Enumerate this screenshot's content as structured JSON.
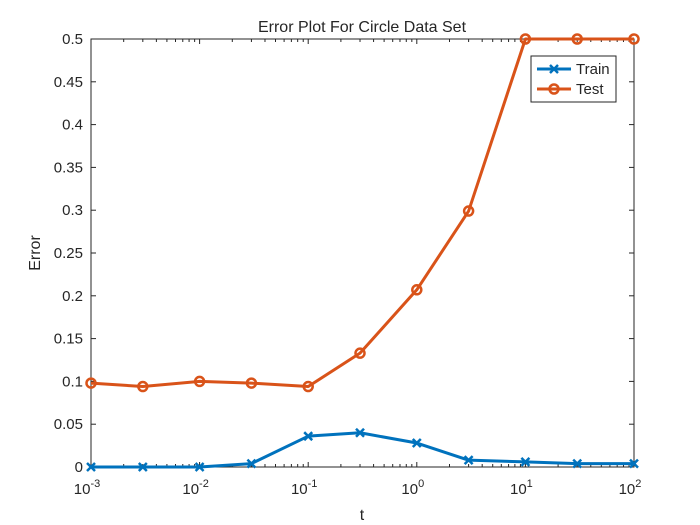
{
  "chart_data": {
    "type": "line",
    "title": "Error Plot For Circle Data Set",
    "xlabel": "t",
    "ylabel": "Error",
    "xscale": "log",
    "xlim": [
      0.001,
      100
    ],
    "ylim": [
      0,
      0.5
    ],
    "x_ticks": [
      {
        "value": 0.001,
        "base": "10",
        "exp": "-3"
      },
      {
        "value": 0.01,
        "base": "10",
        "exp": "-2"
      },
      {
        "value": 0.1,
        "base": "10",
        "exp": "-1"
      },
      {
        "value": 1,
        "base": "10",
        "exp": "0"
      },
      {
        "value": 10,
        "base": "10",
        "exp": "1"
      },
      {
        "value": 100,
        "base": "10",
        "exp": "2"
      }
    ],
    "y_ticks": [
      {
        "value": 0,
        "label": "0"
      },
      {
        "value": 0.05,
        "label": "0.05"
      },
      {
        "value": 0.1,
        "label": "0.1"
      },
      {
        "value": 0.15,
        "label": "0.15"
      },
      {
        "value": 0.2,
        "label": "0.2"
      },
      {
        "value": 0.25,
        "label": "0.25"
      },
      {
        "value": 0.3,
        "label": "0.3"
      },
      {
        "value": 0.35,
        "label": "0.35"
      },
      {
        "value": 0.4,
        "label": "0.4"
      },
      {
        "value": 0.45,
        "label": "0.45"
      },
      {
        "value": 0.5,
        "label": "0.5"
      }
    ],
    "x": [
      0.001,
      0.003,
      0.01,
      0.03,
      0.1,
      0.3,
      1,
      3,
      10,
      30,
      100
    ],
    "series": [
      {
        "name": "Train",
        "marker": "x",
        "color": "#0072BD",
        "values": [
          0,
          0,
          0,
          0.004,
          0.036,
          0.04,
          0.028,
          0.008,
          0.006,
          0.004,
          0.004
        ]
      },
      {
        "name": "Test",
        "marker": "o",
        "color": "#D95319",
        "values": [
          0.098,
          0.094,
          0.1,
          0.098,
          0.094,
          0.133,
          0.207,
          0.299,
          0.5,
          0.5,
          0.5
        ]
      }
    ],
    "legend_position": "top-right",
    "grid": false
  }
}
